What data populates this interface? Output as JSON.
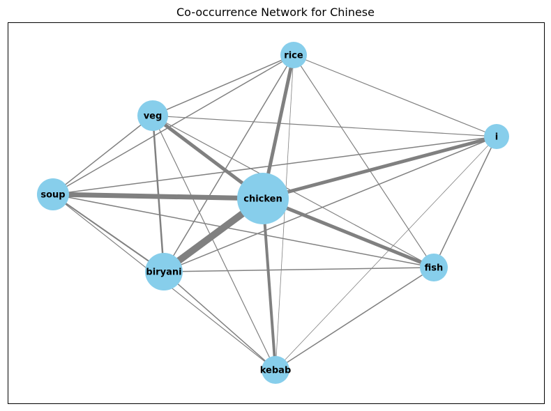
{
  "title": "Co-occurrence Network for Chinese",
  "colors": {
    "node": "#87ceeb",
    "edge": "#808080",
    "frame": "#000000"
  },
  "nodes": [
    {
      "id": "chicken",
      "label": "chicken"
    },
    {
      "id": "biryani",
      "label": "biryani"
    },
    {
      "id": "rice",
      "label": "rice"
    },
    {
      "id": "veg",
      "label": "veg"
    },
    {
      "id": "soup",
      "label": "soup"
    },
    {
      "id": "i",
      "label": "i"
    },
    {
      "id": "fish",
      "label": "fish"
    },
    {
      "id": "kebab",
      "label": "kebab"
    }
  ],
  "edges": [
    {
      "a": "chicken",
      "b": "biryani",
      "weight": 10
    },
    {
      "a": "chicken",
      "b": "soup",
      "weight": 7
    },
    {
      "a": "chicken",
      "b": "rice",
      "weight": 5
    },
    {
      "a": "chicken",
      "b": "veg",
      "weight": 5
    },
    {
      "a": "chicken",
      "b": "i",
      "weight": 5
    },
    {
      "a": "chicken",
      "b": "fish",
      "weight": 5
    },
    {
      "a": "chicken",
      "b": "kebab",
      "weight": 4
    },
    {
      "a": "veg",
      "b": "biryani",
      "weight": 2.5
    },
    {
      "a": "soup",
      "b": "biryani",
      "weight": 2
    },
    {
      "a": "rice",
      "b": "biryani",
      "weight": 1.5
    },
    {
      "a": "veg",
      "b": "soup",
      "weight": 1.5
    },
    {
      "a": "rice",
      "b": "soup",
      "weight": 1.5
    },
    {
      "a": "rice",
      "b": "veg",
      "weight": 1.5
    },
    {
      "a": "i",
      "b": "soup",
      "weight": 1.5
    },
    {
      "a": "i",
      "b": "biryani",
      "weight": 1.5
    },
    {
      "a": "i",
      "b": "fish",
      "weight": 1.5
    },
    {
      "a": "biryani",
      "b": "fish",
      "weight": 1.5
    },
    {
      "a": "biryani",
      "b": "kebab",
      "weight": 1.5
    },
    {
      "a": "soup",
      "b": "kebab",
      "weight": 1.2
    },
    {
      "a": "soup",
      "b": "fish",
      "weight": 1.5
    },
    {
      "a": "veg",
      "b": "fish",
      "weight": 1.2
    },
    {
      "a": "veg",
      "b": "i",
      "weight": 1.2
    },
    {
      "a": "veg",
      "b": "kebab",
      "weight": 1.2
    },
    {
      "a": "rice",
      "b": "i",
      "weight": 1.2
    },
    {
      "a": "rice",
      "b": "fish",
      "weight": 1.2
    },
    {
      "a": "rice",
      "b": "kebab",
      "weight": 0.8
    },
    {
      "a": "i",
      "b": "kebab",
      "weight": 0.8
    },
    {
      "a": "fish",
      "b": "kebab",
      "weight": 1.5
    }
  ]
}
